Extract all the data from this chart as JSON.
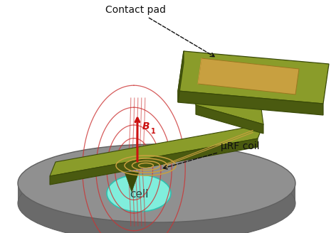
{
  "bg_color": "#ffffff",
  "disk_color": "#909090",
  "disk_dark": "#6a6a6a",
  "disk_edge": "#606060",
  "cell_color": "#80eedc",
  "cell_edge": "#30c0b0",
  "olive": "#6b7c1a",
  "olive_dark": "#3a4a08",
  "olive_light": "#8a9c2a",
  "olive_side": "#4a5a10",
  "pad_gold": "#c8a040",
  "pad_gold_dark": "#9a7820",
  "red": "#cc1111",
  "field_red": "#cc3333",
  "black": "#111111",
  "contact_pad_label": "Contact pad",
  "urf_label": "μRF coil",
  "cell_label": "cell",
  "b1_label": "B",
  "b1_sub": "1"
}
